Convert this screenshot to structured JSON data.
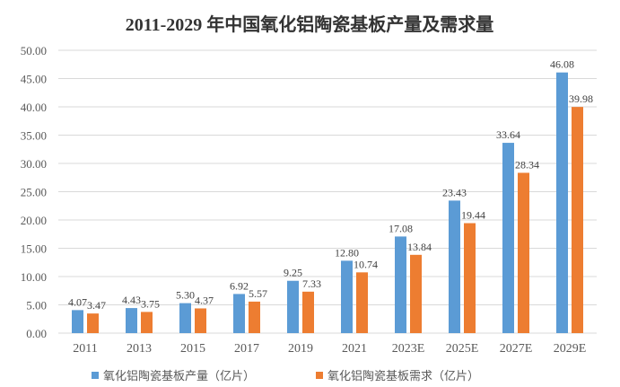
{
  "chart_data": {
    "type": "bar",
    "title": "2011-2029 年中国氧化铝陶瓷基板产量及需求量",
    "categories": [
      "2011",
      "2013",
      "2015",
      "2017",
      "2019",
      "2021",
      "2023E",
      "2025E",
      "2027E",
      "2029E"
    ],
    "series": [
      {
        "name": "氧化铝陶瓷基板产量（亿片）",
        "color": "#5B9BD5",
        "values": [
          4.07,
          4.43,
          5.3,
          6.92,
          9.25,
          12.8,
          17.08,
          23.43,
          33.64,
          46.08
        ]
      },
      {
        "name": "氧化铝陶瓷基板需求（亿片）",
        "color": "#ED7D31",
        "values": [
          3.47,
          3.75,
          4.37,
          5.57,
          7.33,
          10.74,
          13.84,
          19.44,
          28.34,
          39.98
        ]
      }
    ],
    "yticks": [
      "0.00",
      "5.00",
      "10.00",
      "15.00",
      "20.00",
      "25.00",
      "30.00",
      "35.00",
      "40.00",
      "45.00",
      "50.00"
    ],
    "ylim": [
      0,
      50
    ],
    "grid": true,
    "legend": "bottom"
  }
}
